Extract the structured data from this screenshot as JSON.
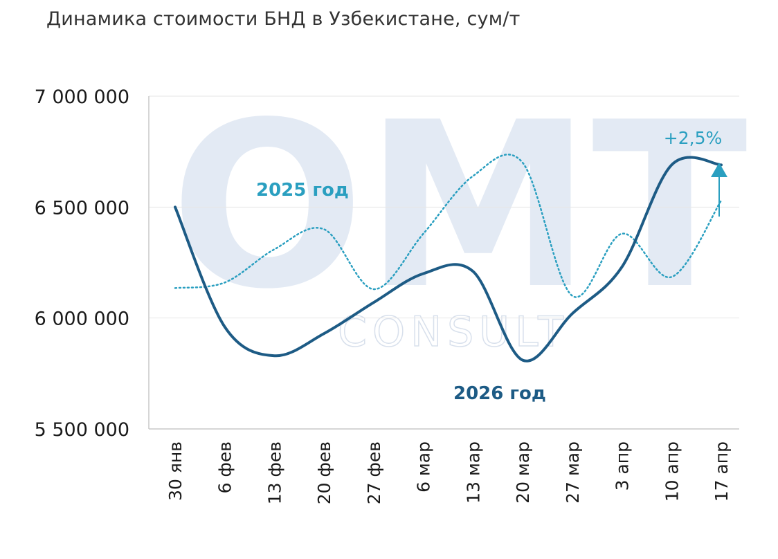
{
  "chart_data": {
    "type": "line",
    "title": "Динамика стоимости БНД в Узбекистане, сум/т",
    "categories": [
      "30 янв",
      "6 фев",
      "13 фев",
      "20 фев",
      "27 фев",
      "6 мар",
      "13 мар",
      "20 мар",
      "27 мар",
      "3 апр",
      "10 апр",
      "17 апр"
    ],
    "y_ticks": [
      "7 000 000",
      "6 500 000",
      "6 000 000",
      "5 500 000"
    ],
    "ylim": [
      5500000,
      7000000
    ],
    "grid": "horizontal",
    "series": [
      {
        "name": "2025 год",
        "style": "dotted",
        "color": "#2a9fc0",
        "values": [
          6135000,
          6160000,
          6310000,
          6400000,
          6130000,
          6380000,
          6640000,
          6700000,
          6100000,
          6380000,
          6185000,
          6530000
        ]
      },
      {
        "name": "2026 год",
        "style": "solid",
        "color": "#1d5b85",
        "values": [
          6500000,
          5960000,
          5830000,
          5930000,
          6070000,
          6200000,
          6210000,
          5810000,
          6020000,
          6230000,
          6690000,
          6690000
        ]
      }
    ],
    "annotations": [
      {
        "text": "+2,5%",
        "color": "#2a9fc0"
      }
    ]
  },
  "watermark": {
    "main": "OMT",
    "sub": "CONSULT"
  },
  "colors": {
    "grid": "#e6e6e6",
    "axis": "#c8c8c8",
    "series_2025": "#2a9fc0",
    "series_2026": "#1d5b85",
    "arrow": "#2a9fc0"
  }
}
